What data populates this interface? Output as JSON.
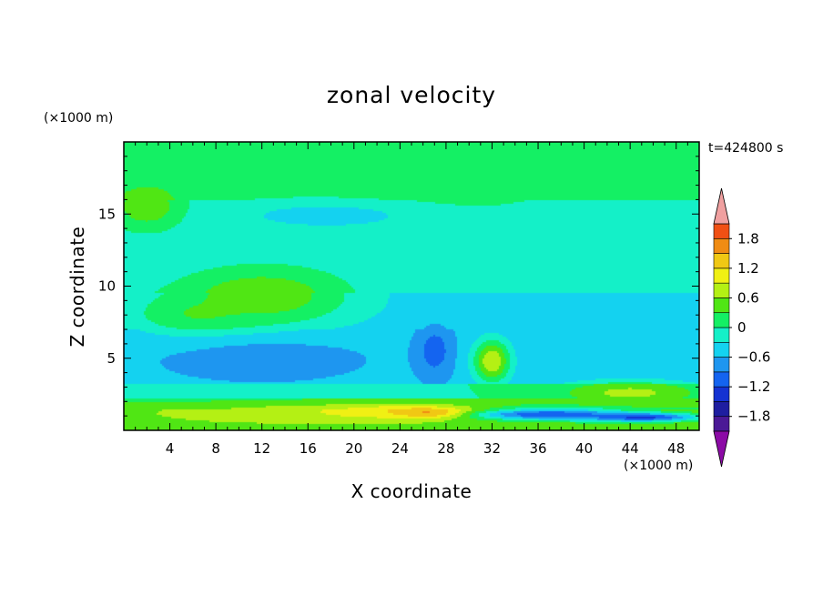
{
  "chart_data": {
    "type": "heatmap",
    "title": "zonal velocity",
    "xlabel": "X coordinate",
    "ylabel": "Z coordinate",
    "x_unit": "(×1000 m)",
    "y_unit": "(×1000 m)",
    "time_label": "t=424800 s",
    "xlim": [
      0,
      50
    ],
    "ylim": [
      0,
      20
    ],
    "x_ticks": [
      4,
      8,
      12,
      16,
      20,
      24,
      28,
      32,
      36,
      40,
      44,
      48
    ],
    "y_ticks": [
      5,
      10,
      15
    ],
    "colorbar": {
      "levels": [
        -2.1,
        -1.8,
        -1.5,
        -1.2,
        -0.9,
        -0.6,
        -0.3,
        0,
        0.3,
        0.6,
        0.9,
        1.2,
        1.5,
        1.8,
        2.1
      ],
      "colors": [
        "#8c0ba6",
        "#4b1996",
        "#1e1ea0",
        "#1432d2",
        "#1464f0",
        "#1e96f0",
        "#14d2f0",
        "#14f0c8",
        "#14f064",
        "#50e614",
        "#b4f014",
        "#f0f014",
        "#f0c814",
        "#f08c14",
        "#f05014",
        "#e61414",
        "#f0a0a0"
      ],
      "labels": [
        "1.8",
        "1.2",
        "0.6",
        "0",
        "-0.6",
        "-1.2",
        "-1.8"
      ],
      "label_values": [
        1.8,
        1.2,
        0.6,
        0,
        -0.6,
        -1.2,
        -1.8
      ]
    },
    "features": [
      {
        "x": 25,
        "z": 17.5,
        "dx": 14,
        "dz": 3.2,
        "u": 0.25
      },
      {
        "x": 18,
        "z": 14.9,
        "dx": 10,
        "dz": 1.2,
        "u": -0.4
      },
      {
        "x": 43,
        "z": 15.0,
        "dx": 9,
        "dz": 1.1,
        "u": -0.1
      },
      {
        "x": 2,
        "z": 15.5,
        "dx": 3,
        "dz": 1.5,
        "u": 0.55
      },
      {
        "x": 12,
        "z": 9.3,
        "dx": 8,
        "dz": 2.2,
        "u": 0.55
      },
      {
        "x": 7,
        "z": 8.0,
        "dx": 6,
        "dz": 1.5,
        "u": 0.35
      },
      {
        "x": 12,
        "z": 5.0,
        "dx": 9,
        "dz": 1.6,
        "u": -0.7
      },
      {
        "x": 27,
        "z": 5.5,
        "dx": 1.4,
        "dz": 1.6,
        "u": -1.1
      },
      {
        "x": 32,
        "z": 4.8,
        "dx": 1.6,
        "dz": 1.5,
        "u": 0.9
      },
      {
        "x": 44,
        "z": 2.6,
        "dx": 6,
        "dz": 0.8,
        "u": 0.7
      },
      {
        "x": 24,
        "z": 1.3,
        "dx": 8,
        "dz": 0.5,
        "u": 1.3
      },
      {
        "x": 27,
        "z": 1.2,
        "dx": 3,
        "dz": 0.3,
        "u": 1.9
      },
      {
        "x": 14,
        "z": 1.2,
        "dx": 8,
        "dz": 0.5,
        "u": 0.9
      },
      {
        "x": 37,
        "z": 1.1,
        "dx": 7,
        "dz": 0.4,
        "u": -1.2
      },
      {
        "x": 45,
        "z": 0.9,
        "dx": 5,
        "dz": 0.3,
        "u": -1.3
      },
      {
        "x": 43,
        "z": 7.2,
        "dx": 2,
        "dz": 0.6,
        "u": -0.45
      }
    ]
  }
}
